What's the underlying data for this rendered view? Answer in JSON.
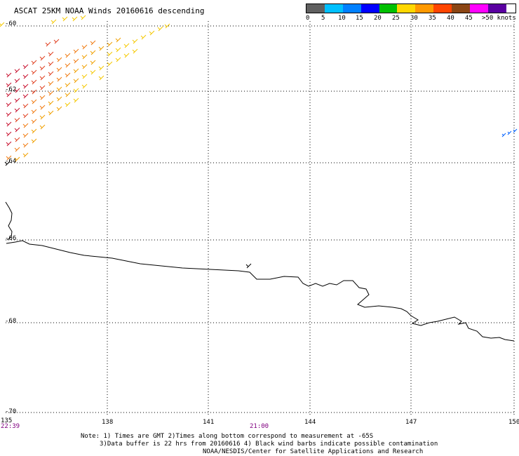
{
  "header": {
    "title": "ASCAT 25KM NOAA Winds 20160616 descending"
  },
  "legend": {
    "labels": [
      "0",
      "5",
      "10",
      "15",
      "20",
      "25",
      "30",
      "35",
      "40",
      "45",
      ">50 knots"
    ],
    "colors": [
      "#606060",
      "#00c0ff",
      "#0080ff",
      "#0000ff",
      "#00c000",
      "#ffd700",
      "#ff9900",
      "#ff4500",
      "#8b4513",
      "#ff00ff",
      "#5a00a0"
    ]
  },
  "map": {
    "lat_labels": [
      "-60",
      "-62",
      "-64",
      "-66",
      "-68",
      "-70"
    ],
    "lon_labels": [
      "135",
      "138",
      "141",
      "144",
      "147",
      "150"
    ],
    "time_labels": [
      "22:39",
      "21:00"
    ]
  },
  "footer": {
    "note_line1": "Note: 1) Times are GMT 2)Times along bottom correspond to measurement at -65S",
    "note_line2": "3)Data buffer is 22 hrs from 20160616 4) Black wind barbs indicate possible contamination",
    "credit": "NOAA/NESDIS/Center for Satellite Applications and Research"
  }
}
